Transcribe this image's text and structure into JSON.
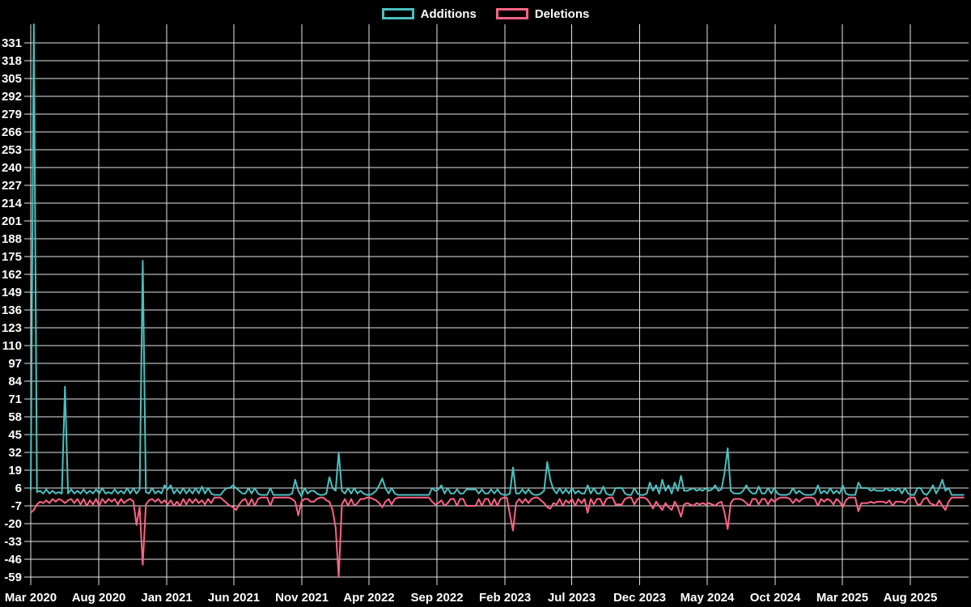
{
  "chart_data": {
    "type": "line",
    "title": "",
    "background": "#000000",
    "grid": true,
    "legend_position": "top",
    "text_color": "#ffffff",
    "grid_color": "#e6e6e6",
    "x_unit": "week",
    "x_axis": {
      "ticks": [
        {
          "label": "Mar 2020",
          "week": 0
        },
        {
          "label": "Aug 2020",
          "week": 21.86
        },
        {
          "label": "Jan 2021",
          "week": 43.71
        },
        {
          "label": "Jun 2021",
          "week": 65.29
        },
        {
          "label": "Nov 2021",
          "week": 87.14
        },
        {
          "label": "Apr 2022",
          "week": 108.71
        },
        {
          "label": "Sep 2022",
          "week": 130.57
        },
        {
          "label": "Feb 2023",
          "week": 152.43
        },
        {
          "label": "Jul 2023",
          "week": 173.86
        },
        {
          "label": "Dec 2023",
          "week": 195.71
        },
        {
          "label": "May 2024",
          "week": 217.43
        },
        {
          "label": "Oct 2024",
          "week": 239.29
        },
        {
          "label": "Mar 2025",
          "week": 260.86
        },
        {
          "label": "Aug 2025",
          "week": 282.71
        }
      ]
    },
    "y_axis": {
      "min": -59,
      "max": 331,
      "step": 13,
      "ticks": [
        331,
        318,
        305,
        292,
        279,
        266,
        253,
        240,
        227,
        214,
        201,
        188,
        175,
        162,
        149,
        136,
        123,
        110,
        97,
        84,
        71,
        58,
        45,
        32,
        19,
        6,
        -7,
        -20,
        -33,
        -46,
        -59
      ]
    },
    "series": [
      {
        "name": "Additions",
        "color": "#4bc0c0",
        "values": [
          4,
          345,
          3,
          4,
          2,
          5,
          2,
          4,
          2,
          3,
          2,
          80,
          2,
          5,
          2,
          4,
          2,
          5,
          2,
          4,
          2,
          5,
          2,
          6,
          2,
          3,
          2,
          5,
          2,
          4,
          2,
          6,
          2,
          6,
          2,
          5,
          172,
          3,
          2,
          6,
          2,
          4,
          2,
          8,
          5,
          8,
          2,
          5,
          2,
          6,
          2,
          5,
          2,
          6,
          2,
          7,
          2,
          6,
          2,
          1,
          1,
          1,
          4,
          6,
          6,
          8,
          6,
          4,
          2,
          2,
          6,
          2,
          6,
          2,
          1,
          1,
          1,
          6,
          1,
          1,
          1,
          1,
          1,
          1,
          2,
          12,
          4,
          0,
          6,
          2,
          4,
          4,
          2,
          1,
          1,
          2,
          14,
          6,
          4,
          32,
          4,
          2,
          6,
          2,
          6,
          2,
          4,
          2,
          1,
          1,
          2,
          4,
          8,
          13,
          6,
          2,
          6,
          2,
          1,
          1,
          1,
          1,
          1,
          1,
          1,
          1,
          1,
          1,
          1,
          6,
          4,
          5,
          8,
          2,
          6,
          2,
          2,
          5,
          2,
          2,
          5,
          5,
          5,
          5,
          2,
          5,
          2,
          2,
          5,
          2,
          5,
          2,
          1,
          1,
          2,
          21,
          2,
          2,
          5,
          2,
          5,
          2,
          1,
          1,
          2,
          4,
          25,
          12,
          5,
          2,
          6,
          2,
          5,
          2,
          6,
          2,
          4,
          2,
          2,
          8,
          2,
          6,
          2,
          2,
          7,
          2,
          1,
          1,
          6,
          6,
          6,
          2,
          1,
          1,
          6,
          2,
          1,
          1,
          2,
          10,
          4,
          8,
          2,
          12,
          4,
          8,
          2,
          10,
          4,
          15,
          4,
          4,
          5,
          6,
          4,
          5,
          4,
          6,
          4,
          5,
          8,
          4,
          5,
          17,
          35,
          4,
          2,
          2,
          2,
          4,
          8,
          4,
          2,
          2,
          7,
          2,
          2,
          6,
          2,
          6,
          2,
          1,
          1,
          1,
          2,
          6,
          2,
          4,
          2,
          1,
          1,
          1,
          2,
          8,
          2,
          4,
          2,
          6,
          2,
          4,
          2,
          8,
          2,
          1,
          1,
          1,
          10,
          6,
          6,
          6,
          4,
          5,
          4,
          4,
          4,
          6,
          4,
          5,
          4,
          6,
          2,
          6,
          2,
          1,
          1,
          6,
          6,
          2,
          1,
          4,
          8,
          2,
          6,
          12,
          4,
          6,
          1,
          1,
          1,
          1,
          1
        ]
      },
      {
        "name": "Deletions",
        "color": "#ff6384",
        "values": [
          -12,
          -10,
          -6,
          -4,
          -5,
          -3,
          -5,
          -2,
          -4,
          -2,
          -3,
          -5,
          -3,
          -2,
          -5,
          -2,
          -6,
          -2,
          -7,
          -3,
          -6,
          -2,
          -7,
          -2,
          -5,
          -2,
          -4,
          -2,
          -6,
          -2,
          -5,
          -3,
          -2,
          -4,
          -21,
          -8,
          -50,
          -6,
          -3,
          -2,
          -4,
          -2,
          -5,
          -3,
          -6,
          -3,
          -7,
          -4,
          -7,
          -2,
          -6,
          -2,
          -5,
          -2,
          -5,
          -3,
          -6,
          -2,
          -5,
          -1,
          -1,
          -1,
          -3,
          -5,
          -7,
          -8,
          -10,
          -6,
          -3,
          -2,
          -7,
          -2,
          -7,
          -2,
          -1,
          -1,
          -1,
          -7,
          -1,
          -1,
          -1,
          -1,
          -1,
          -1,
          -2,
          -4,
          -14,
          -4,
          -2,
          -2,
          -4,
          -4,
          -2,
          -1,
          -1,
          -3,
          -4,
          -10,
          -23,
          -59,
          -6,
          -2,
          -7,
          -2,
          -7,
          -5,
          -2,
          -2,
          -1,
          -1,
          -2,
          -3,
          -5,
          -8,
          -4,
          -2,
          -6,
          -2,
          -1,
          -1,
          -1,
          -1,
          -1,
          -1,
          -1,
          -1,
          -1,
          -1,
          -1,
          -4,
          -6,
          -5,
          -3,
          -7,
          -5,
          -2,
          -2,
          -7,
          -2,
          -2,
          -7,
          -7,
          -7,
          -7,
          -2,
          -7,
          -2,
          -2,
          -7,
          -2,
          -7,
          -2,
          -1,
          -1,
          -13,
          -25,
          -5,
          -2,
          -5,
          -2,
          -5,
          -2,
          -1,
          -1,
          -3,
          -5,
          -8,
          -9,
          -5,
          -6,
          -2,
          -7,
          -3,
          -5,
          -2,
          -7,
          -2,
          -5,
          -2,
          -12,
          -2,
          -6,
          -2,
          -2,
          -7,
          -2,
          -1,
          -1,
          -6,
          -6,
          -6,
          -2,
          -1,
          -1,
          -6,
          -2,
          -1,
          -1,
          -2,
          -5,
          -9,
          -4,
          -7,
          -10,
          -5,
          -8,
          -10,
          -4,
          -8,
          -15,
          -6,
          -5,
          -6,
          -7,
          -5,
          -6,
          -5,
          -6,
          -5,
          -6,
          -7,
          -5,
          -4,
          -12,
          -24,
          -5,
          -2,
          -2,
          -2,
          -3,
          -5,
          -7,
          -2,
          -2,
          -6,
          -2,
          -2,
          -6,
          -2,
          -4,
          -2,
          -1,
          -1,
          -1,
          -2,
          -5,
          -2,
          -4,
          -2,
          -1,
          -1,
          -1,
          -2,
          -7,
          -2,
          -4,
          -2,
          -3,
          -6,
          -2,
          -4,
          -8,
          -3,
          -1,
          -1,
          -1,
          -11,
          -5,
          -5,
          -5,
          -4,
          -5,
          -4,
          -4,
          -4,
          -5,
          -3,
          -7,
          -4,
          -4,
          -4,
          -5,
          -2,
          -1,
          -1,
          -6,
          -6,
          -2,
          -1,
          -5,
          -6,
          -7,
          -3,
          -7,
          -10,
          -4,
          -1,
          -1,
          -1,
          -1,
          -1
        ]
      }
    ]
  }
}
